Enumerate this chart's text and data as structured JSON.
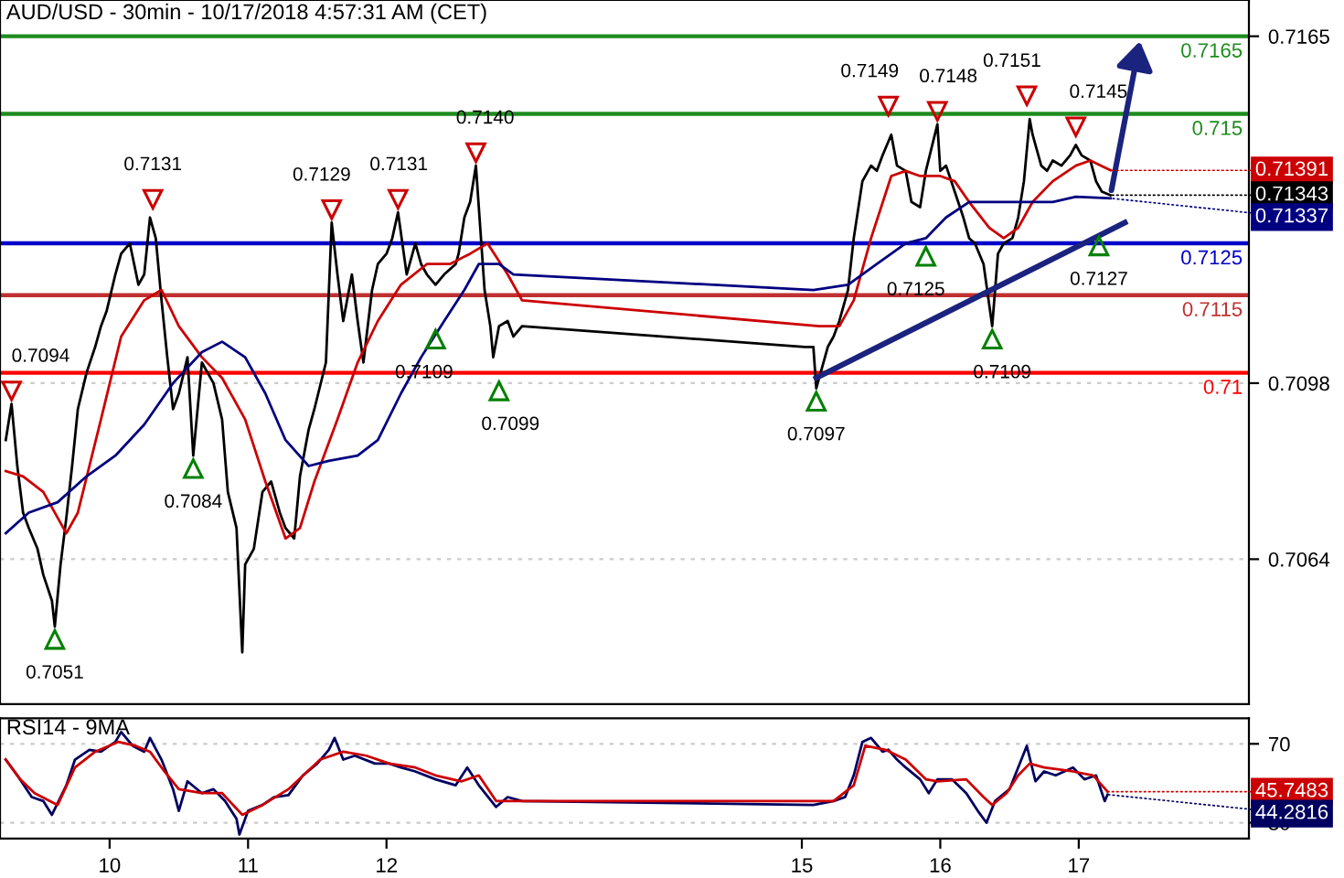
{
  "chart_data": [
    {
      "type": "line",
      "title": "AUD/USD - 30min - 10/17/2018 4:57:31 AM (CET)",
      "xlim": [
        "2018-10-09T05:00",
        "2018-10-18T05:30"
      ],
      "ylim": [
        0.7036,
        0.7172
      ],
      "yticks": [
        0.7064,
        0.7098,
        0.7165
      ],
      "grid": "y",
      "tick_labels": "y",
      "series": [
        {
          "color": "#000000",
          "x": [
            "2018-10-09T06:00",
            "2018-10-09T07:00",
            "2018-10-09T08:00",
            "2018-10-09T09:00",
            "2018-10-09T10:00",
            "2018-10-09T11:30",
            "2018-10-09T12:30",
            "2018-10-09T14:00",
            "2018-10-09T14:30",
            "2018-10-09T15:30",
            "2018-10-09T16:30",
            "2018-10-09T17:30",
            "2018-10-09T18:30",
            "2018-10-09T20:00",
            "2018-10-09T21:30",
            "2018-10-09T22:30",
            "2018-10-09T23:30",
            "2018-10-10T01:00",
            "2018-10-10T02:00",
            "2018-10-10T03:30",
            "2018-10-10T05:00",
            "2018-10-10T06:00",
            "2018-10-10T07:00",
            "2018-10-10T08:00",
            "2018-10-10T09:00",
            "2018-10-10T10:00",
            "2018-10-10T11:00",
            "2018-10-10T12:00",
            "2018-10-10T13:30",
            "2018-10-10T14:30",
            "2018-10-10T16:00",
            "2018-10-10T17:00",
            "2018-10-10T18:00",
            "2018-10-10T19:30",
            "2018-10-10T20:30",
            "2018-10-10T22:00",
            "2018-10-10T23:00",
            "2018-10-10T23:30",
            "2018-10-11T01:00",
            "2018-10-11T02:30",
            "2018-10-11T04:00",
            "2018-10-11T05:30",
            "2018-10-11T06:30",
            "2018-10-11T08:00",
            "2018-10-11T09:00",
            "2018-10-11T10:30",
            "2018-10-11T11:30",
            "2018-10-11T13:30",
            "2018-10-11T14:30",
            "2018-10-11T15:30",
            "2018-10-11T16:30",
            "2018-10-11T18:00",
            "2018-10-11T19:00",
            "2018-10-11T20:00",
            "2018-10-11T21:30",
            "2018-10-11T22:30",
            "2018-10-12T00:00",
            "2018-10-12T01:00",
            "2018-10-12T02:00",
            "2018-10-12T03:30",
            "2018-10-12T05:00",
            "2018-10-12T06:00",
            "2018-10-12T07:00",
            "2018-10-12T08:30",
            "2018-10-12T10:00",
            "2018-10-12T12:00",
            "2018-10-12T12:30",
            "2018-10-12T13:30",
            "2018-10-12T14:30",
            "2018-10-12T15:30",
            "2018-10-12T17:00",
            "2018-10-12T18:00",
            "2018-10-12T18:30",
            "2018-10-12T19:30",
            "2018-10-12T21:00",
            "2018-10-12T22:00",
            "2018-10-12T23:30",
            "2018-10-15T00:30",
            "2018-10-15T02:00",
            "2018-10-15T02:30",
            "2018-10-15T04:30",
            "2018-10-15T05:30",
            "2018-10-15T06:30",
            "2018-10-15T08:00",
            "2018-10-15T09:00",
            "2018-10-15T10:30",
            "2018-10-15T12:00",
            "2018-10-15T13:00",
            "2018-10-15T14:00",
            "2018-10-15T15:30",
            "2018-10-15T16:30",
            "2018-10-15T18:00",
            "2018-10-15T19:00",
            "2018-10-15T20:30",
            "2018-10-15T21:30",
            "2018-10-15T23:30",
            "2018-10-16T00:00",
            "2018-10-16T01:00",
            "2018-10-16T02:30",
            "2018-10-16T04:00",
            "2018-10-16T05:00",
            "2018-10-16T06:00",
            "2018-10-16T07:30",
            "2018-10-16T09:00",
            "2018-10-16T10:00",
            "2018-10-16T11:00",
            "2018-10-16T12:30",
            "2018-10-16T13:30",
            "2018-10-16T14:30",
            "2018-10-16T15:30",
            "2018-10-16T16:00",
            "2018-10-16T17:30",
            "2018-10-16T18:30",
            "2018-10-16T19:30",
            "2018-10-16T21:00",
            "2018-10-16T22:30",
            "2018-10-16T23:30",
            "2018-10-17T00:30",
            "2018-10-17T02:00",
            "2018-10-17T03:00",
            "2018-10-17T04:00",
            "2018-10-17T05:30"
          ],
          "values": [
            0.7087,
            0.7094,
            0.7082,
            0.7073,
            0.707,
            0.7066,
            0.7061,
            0.7056,
            0.7051,
            0.7063,
            0.7072,
            0.7082,
            0.7093,
            0.71,
            0.7105,
            0.7109,
            0.7112,
            0.7119,
            0.7123,
            0.7125,
            0.7117,
            0.7119,
            0.713,
            0.7126,
            0.7114,
            0.7103,
            0.7093,
            0.7096,
            0.7103,
            0.7084,
            0.7102,
            0.71,
            0.7098,
            0.7091,
            0.7077,
            0.707,
            0.7046,
            0.7063,
            0.7066,
            0.7077,
            0.7079,
            0.7073,
            0.707,
            0.7068,
            0.708,
            0.7089,
            0.7093,
            0.7102,
            0.7129,
            0.7119,
            0.711,
            0.7119,
            0.711,
            0.7102,
            0.7116,
            0.7121,
            0.7123,
            0.7126,
            0.7131,
            0.7119,
            0.7125,
            0.7121,
            0.7119,
            0.7117,
            0.7119,
            0.7121,
            0.7123,
            0.713,
            0.7133,
            0.714,
            0.7116,
            0.7109,
            0.7103,
            0.7109,
            0.711,
            0.7107,
            0.7109,
            0.7105,
            0.7105,
            0.7097,
            0.7105,
            0.7107,
            0.711,
            0.7116,
            0.7126,
            0.7137,
            0.714,
            0.7139,
            0.7142,
            0.7146,
            0.714,
            0.7139,
            0.7133,
            0.7132,
            0.7139,
            0.7148,
            0.7139,
            0.714,
            0.7135,
            0.713,
            0.7126,
            0.7125,
            0.7121,
            0.7109,
            0.7123,
            0.7125,
            0.7126,
            0.713,
            0.7137,
            0.7149,
            0.7146,
            0.714,
            0.7139,
            0.7141,
            0.714,
            0.7142,
            0.7144,
            0.7142,
            0.7141,
            0.7137,
            0.7135,
            0.71343
          ],
          "value_labels": [
            null,
            null,
            null,
            null,
            null,
            null,
            null,
            null,
            null,
            null,
            null,
            null,
            null,
            null,
            null,
            null,
            null,
            null,
            null,
            null,
            null,
            null,
            null,
            null,
            null,
            null,
            null,
            null,
            null,
            null,
            null,
            null,
            null,
            null,
            null,
            null,
            null,
            null,
            null,
            null,
            null,
            null,
            null,
            null,
            null,
            null,
            null,
            null,
            null,
            null,
            null,
            null,
            null,
            null,
            null,
            null,
            null,
            null,
            null,
            null,
            null,
            null,
            null,
            null,
            null,
            null,
            null,
            null,
            null,
            null,
            null,
            null,
            null,
            null,
            null,
            null,
            null,
            null,
            null,
            null,
            null,
            null,
            null,
            null,
            null,
            null,
            null,
            null,
            null,
            null,
            null,
            null,
            null,
            null,
            null,
            null,
            null,
            null,
            null,
            null,
            null,
            null,
            null,
            null,
            null,
            null,
            null,
            null,
            null,
            null,
            null,
            null,
            null,
            null,
            null,
            null,
            null,
            null,
            null,
            null,
            null,
            "0.71343"
          ]
        },
        {
          "color": "#cc0000",
          "x": [
            "2018-10-09T06:00",
            "2018-10-09T09:00",
            "2018-10-09T12:30",
            "2018-10-09T16:30",
            "2018-10-09T18:30",
            "2018-10-09T22:30",
            "2018-10-10T02:00",
            "2018-10-10T06:00",
            "2018-10-10T09:00",
            "2018-10-10T12:00",
            "2018-10-10T16:00",
            "2018-10-10T19:30",
            "2018-10-10T23:30",
            "2018-10-11T03:00",
            "2018-10-11T06:30",
            "2018-10-11T09:00",
            "2018-10-11T11:30",
            "2018-10-11T15:30",
            "2018-10-11T19:00",
            "2018-10-11T22:30",
            "2018-10-12T02:30",
            "2018-10-12T07:00",
            "2018-10-12T11:00",
            "2018-10-12T14:30",
            "2018-10-12T17:30",
            "2018-10-12T21:00",
            "2018-10-12T23:30",
            "2018-10-15T03:00",
            "2018-10-15T06:30",
            "2018-10-15T09:00",
            "2018-10-15T12:00",
            "2018-10-15T15:30",
            "2018-10-15T18:00",
            "2018-10-15T20:30",
            "2018-10-16T00:00",
            "2018-10-16T02:30",
            "2018-10-16T05:00",
            "2018-10-16T08:30",
            "2018-10-16T11:00",
            "2018-10-16T13:30",
            "2018-10-16T16:00",
            "2018-10-16T19:30",
            "2018-10-16T23:30",
            "2018-10-17T02:00",
            "2018-10-17T05:30"
          ],
          "values": [
            0.7081,
            0.708,
            0.7077,
            0.7069,
            0.7073,
            0.7091,
            0.7107,
            0.7114,
            0.7116,
            0.7109,
            0.7103,
            0.7099,
            0.7091,
            0.7079,
            0.7068,
            0.707,
            0.7079,
            0.7091,
            0.7102,
            0.711,
            0.7117,
            0.7121,
            0.7121,
            0.7123,
            0.7125,
            0.7119,
            0.7114,
            0.7109,
            0.7109,
            0.7114,
            0.7126,
            0.7138,
            0.7139,
            0.7138,
            0.7138,
            0.7137,
            0.7133,
            0.7128,
            0.7126,
            0.7128,
            0.7133,
            0.7137,
            0.714,
            0.7141,
            0.71391
          ],
          "value_labels": [
            null,
            null,
            null,
            null,
            null,
            null,
            null,
            null,
            null,
            null,
            null,
            null,
            null,
            null,
            null,
            null,
            null,
            null,
            null,
            null,
            null,
            null,
            null,
            null,
            null,
            null,
            null,
            null,
            null,
            null,
            null,
            null,
            null,
            null,
            null,
            null,
            null,
            null,
            null,
            null,
            null,
            null,
            null,
            null,
            "0.71391"
          ]
        },
        {
          "color": "#000080",
          "x": [
            "2018-10-09T06:00",
            "2018-10-09T10:00",
            "2018-10-09T15:00",
            "2018-10-09T20:00",
            "2018-10-10T01:00",
            "2018-10-10T06:00",
            "2018-10-10T11:00",
            "2018-10-10T16:00",
            "2018-10-10T19:30",
            "2018-10-10T23:30",
            "2018-10-11T03:00",
            "2018-10-11T06:30",
            "2018-10-11T10:30",
            "2018-10-11T14:00",
            "2018-10-11T19:00",
            "2018-10-11T22:30",
            "2018-10-12T02:30",
            "2018-10-12T06:00",
            "2018-10-12T10:00",
            "2018-10-12T13:30",
            "2018-10-12T16:00",
            "2018-10-12T19:30",
            "2018-10-12T22:00",
            "2018-10-15T02:00",
            "2018-10-15T08:00",
            "2018-10-15T13:00",
            "2018-10-15T18:00",
            "2018-10-15T21:30",
            "2018-10-16T01:00",
            "2018-10-16T05:00",
            "2018-10-16T08:30",
            "2018-10-16T12:30",
            "2018-10-16T16:00",
            "2018-10-16T19:30",
            "2018-10-16T23:30",
            "2018-10-17T05:30"
          ],
          "values": [
            0.7069,
            0.7073,
            0.7075,
            0.708,
            0.7084,
            0.709,
            0.7098,
            0.7104,
            0.7106,
            0.7103,
            0.7096,
            0.7087,
            0.7082,
            0.7083,
            0.7084,
            0.7087,
            0.7096,
            0.7103,
            0.711,
            0.7116,
            0.7121,
            0.7121,
            0.7119,
            0.7116,
            0.7117,
            0.7121,
            0.7125,
            0.7126,
            0.713,
            0.7133,
            0.7133,
            0.7133,
            0.7133,
            0.7133,
            0.7134,
            0.71337
          ],
          "value_labels": [
            null,
            null,
            null,
            null,
            null,
            null,
            null,
            null,
            null,
            null,
            null,
            null,
            null,
            null,
            null,
            null,
            null,
            null,
            null,
            null,
            null,
            null,
            null,
            null,
            null,
            null,
            null,
            null,
            null,
            null,
            null,
            null,
            null,
            null,
            null,
            "0.71337"
          ]
        },
        {
          "color": "#1a237e",
          "x": [
            "2018-10-15T02:30",
            "2018-10-17T08:00"
          ],
          "values": [
            0.7099,
            0.7129
          ]
        }
      ],
      "ref_lines": [
        {
          "axis": "y",
          "value": 0.7165,
          "label": "0.7165",
          "color": "#1e8c1e"
        },
        {
          "axis": "y",
          "value": 0.715,
          "label": "0.715",
          "color": "#1e8c1e"
        },
        {
          "axis": "y",
          "value": 0.7125,
          "label": "0.7125",
          "color": "#0000c8"
        },
        {
          "axis": "y",
          "value": 0.7115,
          "label": "0.7115",
          "color": "#c03030"
        },
        {
          "axis": "y",
          "value": 0.71,
          "label": "0.71",
          "color": "#ff0000"
        }
      ],
      "annotations": [
        {
          "text": "0.7094",
          "x": "2018-10-09T07:00",
          "y": 0.7094
        },
        {
          "text": "0.7051",
          "x": "2018-10-09T14:30",
          "y": 0.7051
        },
        {
          "text": "0.7131",
          "x": "2018-10-10T07:30",
          "y": 0.7131
        },
        {
          "text": "0.7084",
          "x": "2018-10-10T14:30",
          "y": 0.7084
        },
        {
          "text": "0.7129",
          "x": "2018-10-11T14:30",
          "y": 0.7129
        },
        {
          "text": "0.7131",
          "x": "2018-10-12T02:00",
          "y": 0.7131
        },
        {
          "text": "0.7109",
          "x": "2018-10-12T08:30",
          "y": 0.7109
        },
        {
          "text": "0.7140",
          "x": "2018-10-12T15:30",
          "y": 0.714
        },
        {
          "text": "0.7099",
          "x": "2018-10-12T19:30",
          "y": 0.7099
        },
        {
          "text": "0.7097",
          "x": "2018-10-15T02:30",
          "y": 0.7097
        },
        {
          "text": "0.7149",
          "x": "2018-10-15T15:00",
          "y": 0.7149
        },
        {
          "text": "0.7125",
          "x": "2018-10-15T21:30",
          "y": 0.7125
        },
        {
          "text": "0.7148",
          "x": "2018-10-15T23:30",
          "y": 0.7148
        },
        {
          "text": "0.7109",
          "x": "2018-10-16T09:00",
          "y": 0.7109
        },
        {
          "text": "0.7151",
          "x": "2018-10-16T15:00",
          "y": 0.7151
        },
        {
          "text": "0.7145",
          "x": "2018-10-16T23:30",
          "y": 0.7145
        },
        {
          "text": "0.7127",
          "x": "2018-10-17T03:30",
          "y": 0.7127
        }
      ]
    },
    {
      "type": "line",
      "title": "RSI14 - 9MA",
      "xlim": [
        "2018-10-09T05:00",
        "2018-10-18T05:30"
      ],
      "ylim": [
        22,
        83
      ],
      "yticks": [
        30,
        70
      ],
      "grid": "y",
      "xticks": [
        {
          "value": "2018-10-10",
          "label": "10"
        },
        {
          "value": "2018-10-11",
          "label": "11"
        },
        {
          "value": "2018-10-12",
          "label": "12"
        },
        {
          "value": "2018-10-15",
          "label": "15"
        },
        {
          "value": "2018-10-16",
          "label": "16"
        },
        {
          "value": "2018-10-17",
          "label": "17"
        }
      ],
      "series": [
        {
          "color": "#000060",
          "x": [
            "2018-10-09T06:00",
            "2018-10-09T08:00",
            "2018-10-09T10:30",
            "2018-10-09T12:30",
            "2018-10-09T14:00",
            "2018-10-09T16:30",
            "2018-10-09T18:00",
            "2018-10-09T20:30",
            "2018-10-09T22:30",
            "2018-10-10T01:00",
            "2018-10-10T02:00",
            "2018-10-10T04:00",
            "2018-10-10T06:00",
            "2018-10-10T07:00",
            "2018-10-10T09:00",
            "2018-10-10T11:00",
            "2018-10-10T12:00",
            "2018-10-10T13:30",
            "2018-10-10T16:00",
            "2018-10-10T18:00",
            "2018-10-10T20:00",
            "2018-10-10T22:00",
            "2018-10-10T22:30",
            "2018-10-11T00:00",
            "2018-10-11T02:30",
            "2018-10-11T04:30",
            "2018-10-11T07:00",
            "2018-10-11T09:30",
            "2018-10-11T12:00",
            "2018-10-11T14:00",
            "2018-10-11T15:00",
            "2018-10-11T16:30",
            "2018-10-11T18:30",
            "2018-10-11T22:00",
            "2018-10-12T00:30",
            "2018-10-12T02:30",
            "2018-10-12T05:00",
            "2018-10-12T08:30",
            "2018-10-12T12:00",
            "2018-10-12T14:00",
            "2018-10-12T16:00",
            "2018-10-12T19:00",
            "2018-10-12T21:00",
            "2018-10-12T23:30",
            "2018-10-15T02:00",
            "2018-10-15T05:30",
            "2018-10-15T07:30",
            "2018-10-15T09:00",
            "2018-10-15T10:30",
            "2018-10-15T12:00",
            "2018-10-15T14:00",
            "2018-10-15T15:00",
            "2018-10-15T16:30",
            "2018-10-15T18:00",
            "2018-10-15T20:30",
            "2018-10-15T22:00",
            "2018-10-15T23:30",
            "2018-10-16T02:00",
            "2018-10-16T04:30",
            "2018-10-16T06:30",
            "2018-10-16T08:00",
            "2018-10-16T09:30",
            "2018-10-16T12:00",
            "2018-10-16T13:30",
            "2018-10-16T15:00",
            "2018-10-16T16:30",
            "2018-10-16T18:00",
            "2018-10-16T20:00",
            "2018-10-16T23:00",
            "2018-10-17T01:00",
            "2018-10-17T03:00",
            "2018-10-17T04:30",
            "2018-10-17T05:00"
          ],
          "values": [
            62,
            54,
            43,
            41,
            34,
            49,
            62,
            67,
            66,
            71,
            76,
            69,
            66,
            73,
            62,
            47,
            36,
            51,
            45,
            47,
            41,
            32,
            24,
            36,
            39,
            43,
            44,
            54,
            60,
            67,
            73,
            62,
            64,
            60,
            60,
            58,
            56,
            52,
            49,
            58,
            49,
            38,
            43,
            41,
            39,
            41,
            43,
            54,
            71,
            73,
            66,
            67,
            62,
            58,
            52,
            45,
            52,
            52,
            45,
            36,
            30,
            41,
            47,
            58,
            69,
            51,
            56,
            54,
            58,
            52,
            54,
            41,
            44.2816
          ],
          "value_labels": [
            null,
            null,
            null,
            null,
            null,
            null,
            null,
            null,
            null,
            null,
            null,
            null,
            null,
            null,
            null,
            null,
            null,
            null,
            null,
            null,
            null,
            null,
            null,
            null,
            null,
            null,
            null,
            null,
            null,
            null,
            null,
            null,
            null,
            null,
            null,
            null,
            null,
            null,
            null,
            null,
            null,
            null,
            null,
            null,
            null,
            null,
            null,
            null,
            null,
            null,
            null,
            null,
            null,
            null,
            null,
            null,
            null,
            null,
            null,
            null,
            null,
            null,
            null,
            null,
            null,
            null,
            null,
            null,
            null,
            null,
            null,
            null,
            "44.2816"
          ]
        },
        {
          "color": "#cc0000",
          "x": [
            "2018-10-09T06:00",
            "2018-10-09T08:30",
            "2018-10-09T11:00",
            "2018-10-09T15:00",
            "2018-10-09T18:00",
            "2018-10-09T21:30",
            "2018-10-10T01:30",
            "2018-10-10T04:30",
            "2018-10-10T07:00",
            "2018-10-10T09:30",
            "2018-10-10T12:00",
            "2018-10-10T16:00",
            "2018-10-10T19:30",
            "2018-10-10T23:00",
            "2018-10-11T02:30",
            "2018-10-11T07:00",
            "2018-10-11T12:30",
            "2018-10-11T16:30",
            "2018-10-11T20:30",
            "2018-10-12T00:30",
            "2018-10-12T05:00",
            "2018-10-12T08:30",
            "2018-10-12T13:00",
            "2018-10-12T16:00",
            "2018-10-12T19:00",
            "2018-10-15T00:30",
            "2018-10-15T05:30",
            "2018-10-15T09:00",
            "2018-10-15T11:00",
            "2018-10-15T14:30",
            "2018-10-15T18:00",
            "2018-10-15T21:30",
            "2018-10-15T23:30",
            "2018-10-16T04:30",
            "2018-10-16T07:30",
            "2018-10-16T09:00",
            "2018-10-16T11:30",
            "2018-10-16T13:30",
            "2018-10-16T15:30",
            "2018-10-16T18:00",
            "2018-10-16T23:00",
            "2018-10-17T02:30",
            "2018-10-17T05:00"
          ],
          "values": [
            62,
            52,
            45,
            39,
            58,
            66,
            71,
            69,
            66,
            56,
            47,
            45,
            45,
            34,
            39,
            47,
            62,
            66,
            64,
            60,
            58,
            54,
            51,
            54,
            41,
            41,
            41,
            49,
            69,
            67,
            62,
            52,
            51,
            52,
            43,
            39,
            45,
            54,
            60,
            58,
            56,
            54,
            45.7483
          ],
          "value_labels": [
            null,
            null,
            null,
            null,
            null,
            null,
            null,
            null,
            null,
            null,
            null,
            null,
            null,
            null,
            null,
            null,
            null,
            null,
            null,
            null,
            null,
            null,
            null,
            null,
            null,
            null,
            null,
            null,
            null,
            null,
            null,
            null,
            null,
            null,
            null,
            null,
            null,
            null,
            null,
            null,
            null,
            null,
            "45.7483"
          ]
        }
      ]
    }
  ]
}
